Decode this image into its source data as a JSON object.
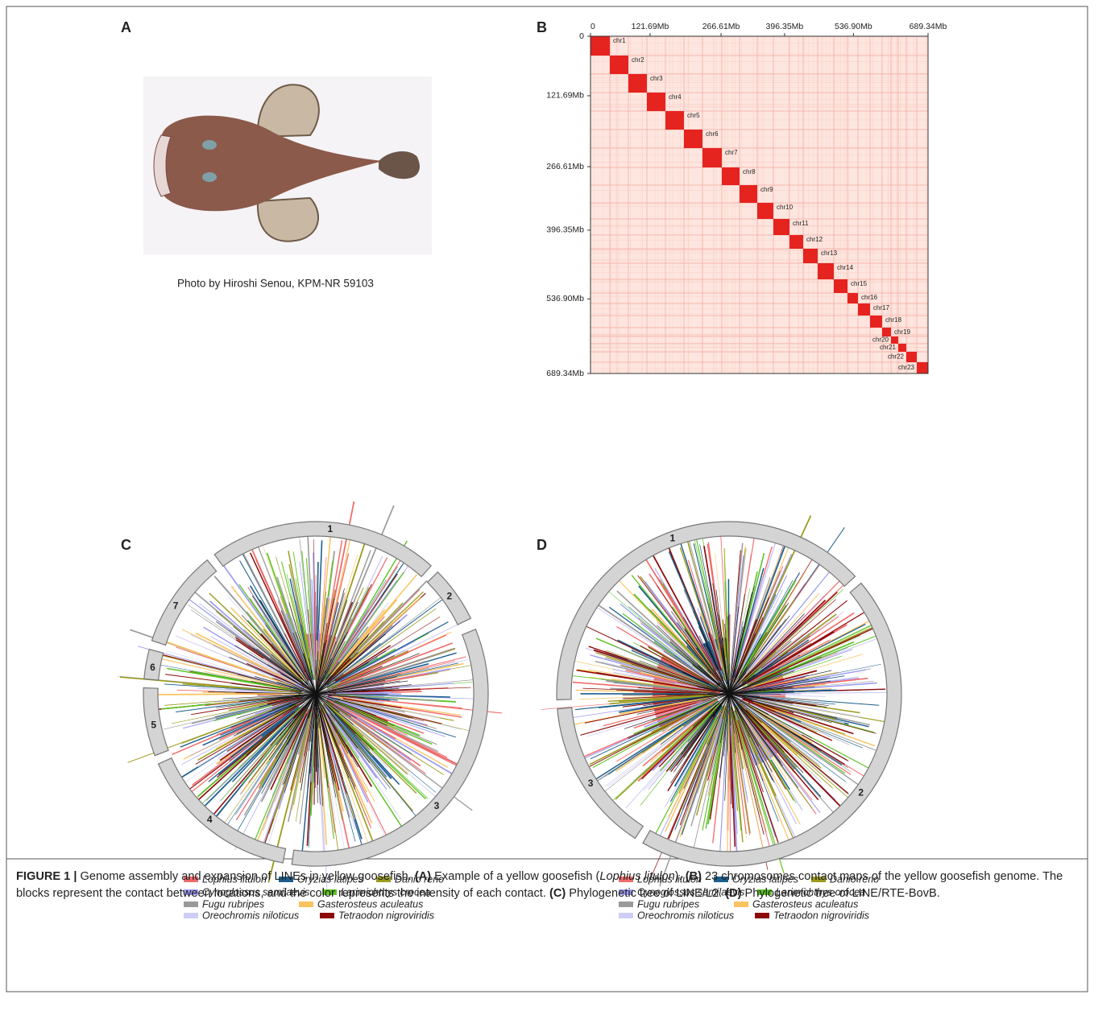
{
  "panel_a": {
    "label": "A",
    "photo_credit": "Photo by Hiroshi Senou, KPM-NR 59103"
  },
  "panel_b": {
    "label": "B",
    "lim": [
      0,
      689.34
    ],
    "ticks": [
      0,
      {
        "value": 121.69,
        "label": "121.69Mb"
      },
      {
        "value": 266.61,
        "label": "266.61Mb"
      },
      {
        "value": 396.35,
        "label": "396.35Mb"
      },
      {
        "value": 536.9,
        "label": "536.90Mb"
      },
      {
        "value": 689.34,
        "label": "689.34Mb"
      }
    ],
    "chromosomes": [
      "chr1",
      "chr2",
      "chr3",
      "chr4",
      "chr5",
      "chr6",
      "chr7",
      "chr8",
      "chr9",
      "chr10",
      "chr11",
      "chr12",
      "chr13",
      "chr14",
      "chr15",
      "chr16",
      "chr17",
      "chr18",
      "chr19",
      "chr20",
      "chr21",
      "chr22",
      "chr23"
    ]
  },
  "panel_c": {
    "label": "C",
    "clades": [
      "1",
      "2",
      "3",
      "4",
      "5",
      "6",
      "7"
    ],
    "legend": [
      {
        "name": "Lophius litulon",
        "color": "#f26b6b"
      },
      {
        "name": "Oryzias latipes",
        "color": "#1c5e8c"
      },
      {
        "name": "Danio rerio",
        "color": "#9b9a1c"
      },
      {
        "name": "Cynoglossus semilaevis",
        "color": "#9d9cf2"
      },
      {
        "name": "Larimichthys crocea",
        "color": "#5ec326"
      },
      {
        "name": "Fugu rubripes",
        "color": "#9a9a9a"
      },
      {
        "name": "Gasterosteus aculeatus",
        "color": "#f9c35f"
      },
      {
        "name": "Oreochromis niloticus",
        "color": "#cfcdf5"
      },
      {
        "name": "Tetraodon nigroviridis",
        "color": "#8e0a0a"
      }
    ]
  },
  "panel_d": {
    "label": "D",
    "clades": [
      "1",
      "2",
      "3"
    ],
    "legend": [
      {
        "name": "Lophius litulon",
        "color": "#f26b6b"
      },
      {
        "name": "Oryzias latipes",
        "color": "#1c5e8c"
      },
      {
        "name": "Danio rerio",
        "color": "#9b9a1c"
      },
      {
        "name": "Cynoglossus semilaevis",
        "color": "#9d9cf2"
      },
      {
        "name": "Larimichthys crocea",
        "color": "#5ec326"
      },
      {
        "name": "Fugu rubripes",
        "color": "#9a9a9a"
      },
      {
        "name": "Gasterosteus aculeatus",
        "color": "#f9c35f"
      },
      {
        "name": "Oreochromis niloticus",
        "color": "#cfcdf5"
      },
      {
        "name": "Tetraodon nigroviridis",
        "color": "#8e0a0a"
      }
    ]
  },
  "caption": {
    "segments": [
      "FIGURE 1 |",
      " Genome assembly and expansion of LINEs in yellow goosefish. ",
      "(A)",
      " Example of a yellow goosefish (",
      "Lophius litulon",
      "). ",
      "(B)",
      " 23 chromosomes contact maps of the yellow goosefish genome. The blocks represent the contact between locations, and the color represents the intensity of each contact. ",
      "(C)",
      " Phylogenetic tree of LINE/L2. ",
      "(D)",
      " Phylogenetic tree of LINE/RTE-BovB."
    ]
  }
}
